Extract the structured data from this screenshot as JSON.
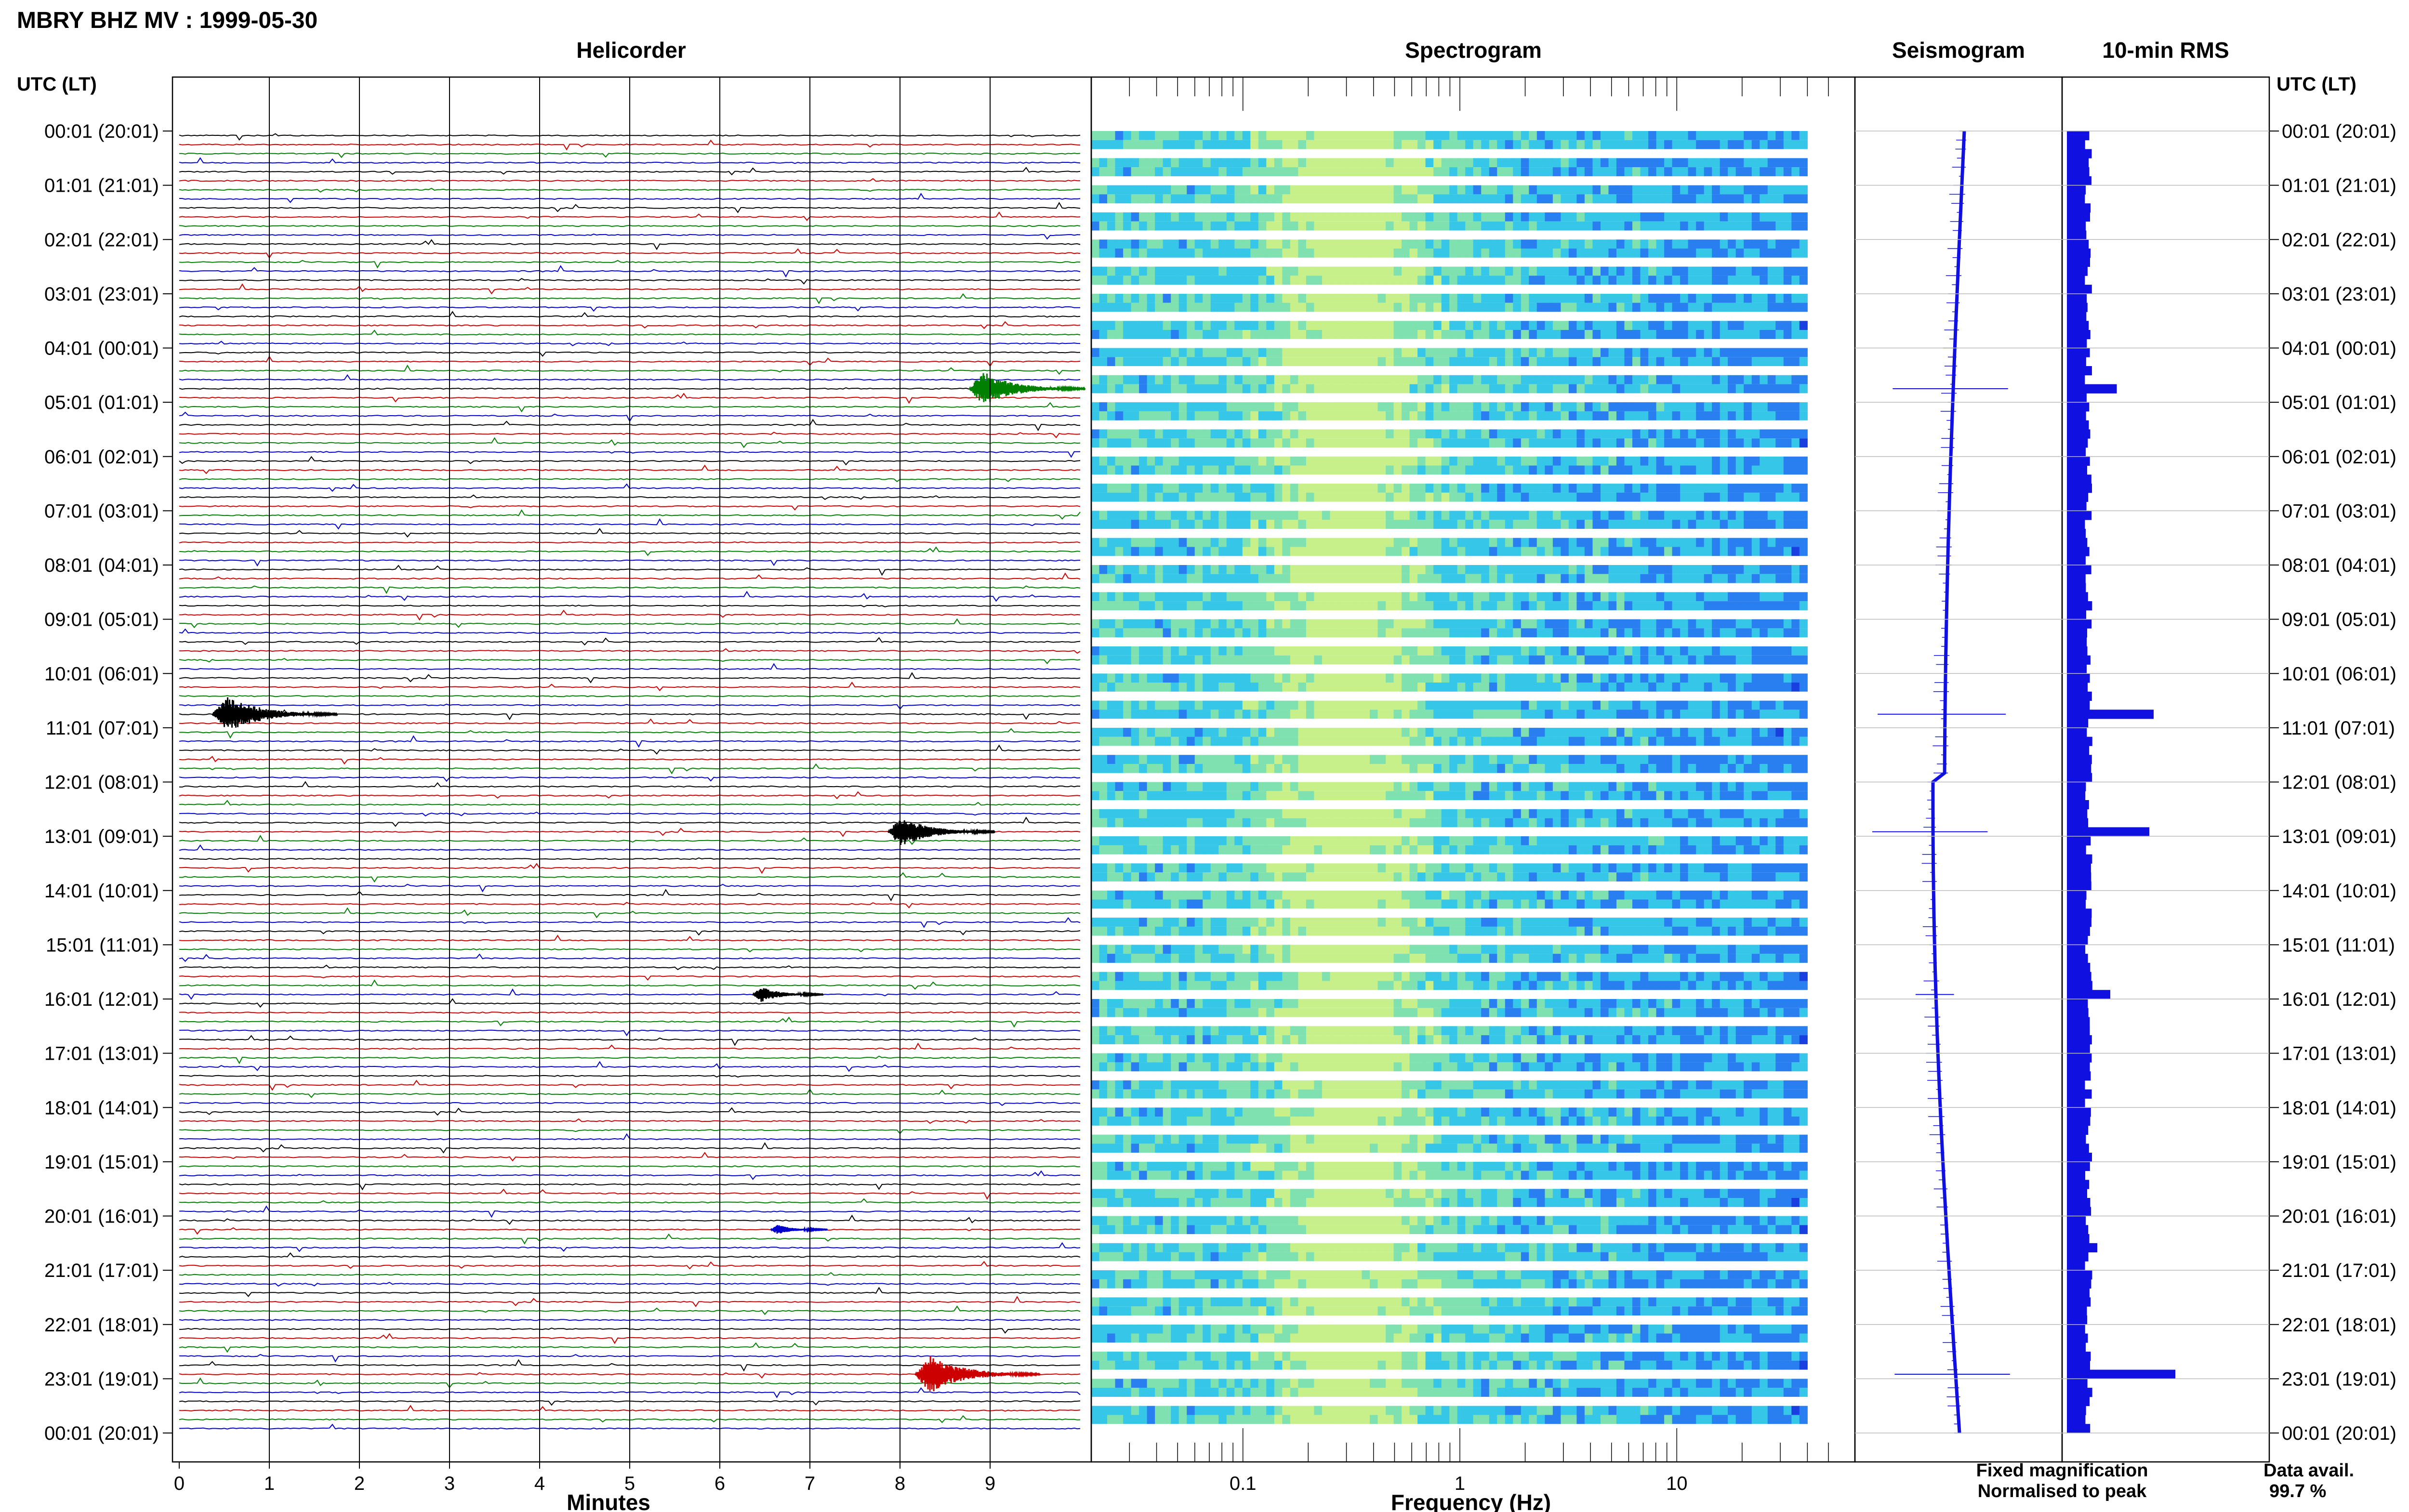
{
  "header": {
    "title": "MBRY BHZ MV : 1999-05-30"
  },
  "chart_data": {
    "type": "helicorder",
    "station": "MBRY",
    "channel": "BHZ",
    "network": "MV",
    "date": "1999-05-30",
    "panels": {
      "helicorder": {
        "title": "Helicorder",
        "xlabel": "Minutes",
        "x_ticks": [
          "0",
          "1",
          "2",
          "3",
          "4",
          "5",
          "6",
          "7",
          "8",
          "9"
        ],
        "xlim": [
          0,
          10
        ],
        "line_colors": [
          "#000000",
          "#cc0000",
          "#008000",
          "#0000cc"
        ],
        "events": [
          {
            "row_time": "04:41",
            "minute": 8.9,
            "color": "#008000",
            "amplitude": 0.9
          },
          {
            "row_time": "10:41",
            "minute": 0.5,
            "color": "#000000",
            "amplitude": 1.0
          },
          {
            "row_time": "12:51",
            "minute": 8.0,
            "color": "#000000",
            "amplitude": 0.8
          },
          {
            "row_time": "15:51",
            "minute": 6.5,
            "color": "#000000",
            "amplitude": 0.4
          },
          {
            "row_time": "20:11",
            "minute": 6.7,
            "color": "#0000cc",
            "amplitude": 0.25
          },
          {
            "row_time": "22:51",
            "minute": 8.3,
            "color": "#cc0000",
            "amplitude": 1.0
          }
        ]
      },
      "spectrogram": {
        "title": "Spectrogram",
        "xlabel": "Frequency (Hz)",
        "x_ticks": [
          "0.1",
          "1",
          "10"
        ],
        "x_scale": "log",
        "xlim": [
          0.02,
          50
        ],
        "colormap": [
          "#1a3fe0",
          "#2a7ff0",
          "#35c6e8",
          "#7fe0b0",
          "#c8f08a"
        ]
      },
      "seismogram": {
        "title": "Seismogram",
        "color": "#1010e0",
        "spikes": [
          {
            "row_time": "04:41",
            "size": 0.9
          },
          {
            "row_time": "10:41",
            "size": 1.0
          },
          {
            "row_time": "12:51",
            "size": 0.9
          },
          {
            "row_time": "15:51",
            "size": 0.3
          },
          {
            "row_time": "22:51",
            "size": 0.9
          }
        ]
      },
      "rms": {
        "title": "10-min RMS",
        "color": "#1010e0",
        "baseline": 1.0,
        "peaks": [
          {
            "row_time": "04:41",
            "value": 2.3
          },
          {
            "row_time": "10:41",
            "value": 4.0
          },
          {
            "row_time": "12:51",
            "value": 3.8
          },
          {
            "row_time": "15:51",
            "value": 2.0
          },
          {
            "row_time": "20:31",
            "value": 1.4
          },
          {
            "row_time": "22:51",
            "value": 5.0
          }
        ]
      }
    },
    "y_axis": {
      "header": "UTC (LT)",
      "rows_per_hour": 6,
      "row_minutes": 10,
      "labels": [
        "00:01 (20:01)",
        "01:01 (21:01)",
        "02:01 (22:01)",
        "03:01 (23:01)",
        "04:01 (00:01)",
        "05:01 (01:01)",
        "06:01 (02:01)",
        "07:01 (03:01)",
        "08:01 (04:01)",
        "09:01 (05:01)",
        "10:01 (06:01)",
        "11:01 (07:01)",
        "12:01 (08:01)",
        "13:01 (09:01)",
        "14:01 (10:01)",
        "15:01 (11:01)",
        "16:01 (12:01)",
        "17:01 (13:01)",
        "18:01 (14:01)",
        "19:01 (15:01)",
        "20:01 (16:01)",
        "21:01 (17:01)",
        "22:01 (18:01)",
        "23:01 (19:01)",
        "00:01 (20:01)"
      ]
    },
    "legend": {
      "fixed": {
        "text": "Fixed magnification",
        "color": "#1010e0"
      },
      "normalised": {
        "text": "Normalised to peak",
        "color": "#e00000"
      }
    },
    "availability": {
      "label": "Data avail.",
      "value": "99.7 %"
    }
  }
}
